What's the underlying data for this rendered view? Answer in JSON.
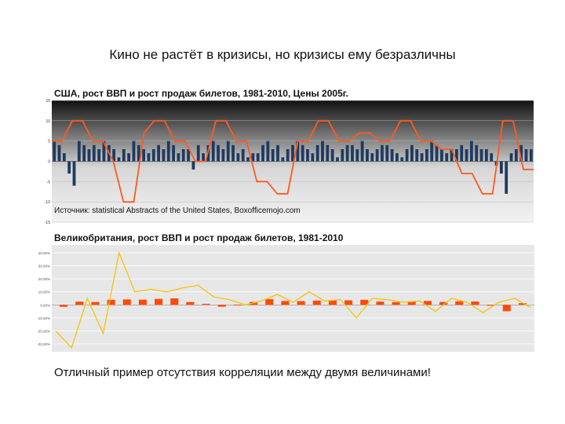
{
  "slide": {
    "title": "Кино не растёт в кризисы, но кризисы ему безразличны",
    "conclusion": "Отличный пример отсутствия корреляции между двумя величинами!"
  },
  "colors": {
    "us_gdp_bars": "#1f3a5f",
    "us_tickets_line": "#ff5a1f",
    "uk_gdp_bars": "#ff4a0a",
    "uk_tickets_line": "#f5c400"
  },
  "chart_data": [
    {
      "type": "bar",
      "title": "США, рост ВВП и рост продаж билетов, 1981-2010, Цены 2005г.",
      "source": "Источник: statistical Abstracts of the United States, Boxofficemojo.com",
      "y_ticks": [
        "15",
        "10",
        "5",
        "0",
        "-5",
        "-10",
        "-15"
      ],
      "ylim": [
        -15,
        15
      ],
      "grid": true,
      "series": [
        {
          "kind": "bars",
          "values": [
            5,
            4,
            2,
            -3,
            -6,
            5,
            4,
            3,
            4,
            3,
            5,
            4,
            3,
            1,
            3,
            2,
            5,
            4,
            3,
            2,
            3,
            4,
            3,
            5,
            4,
            2,
            3,
            3,
            -2,
            4,
            2,
            4,
            5,
            4,
            3,
            5,
            4,
            2,
            3,
            1,
            2,
            2,
            4,
            5,
            3,
            4,
            1,
            3,
            4,
            5,
            4,
            3,
            2,
            4,
            5,
            4,
            3,
            1,
            3,
            4,
            4,
            3,
            5,
            3,
            2,
            3,
            4,
            4,
            3,
            2,
            1,
            3,
            4,
            3,
            2,
            3,
            5,
            4,
            3,
            2,
            3,
            3,
            4,
            3,
            5,
            4,
            3,
            3,
            2,
            -1,
            -3,
            -8,
            2,
            3,
            4,
            3,
            3
          ]
        },
        {
          "kind": "line",
          "values": [
            5,
            5,
            10,
            10,
            5,
            5,
            0,
            -10,
            -10,
            7,
            10,
            10,
            5,
            5,
            0,
            0,
            10,
            10,
            5,
            5,
            -5,
            -5,
            -8,
            -8,
            5,
            5,
            10,
            10,
            5,
            5,
            7,
            7,
            5,
            5,
            10,
            10,
            5,
            5,
            3,
            3,
            -3,
            -3,
            -8,
            -8,
            10,
            10,
            -2,
            -2
          ]
        }
      ]
    },
    {
      "type": "bar",
      "title": "Великобритания, рост ВВП и рост продаж билетов, 1981-2010",
      "y_ticks": [
        "40,00%",
        "30,00%",
        "20,00%",
        "10,00%",
        "0,00%",
        "-10,00%",
        "-20,00%",
        "-30,00%"
      ],
      "ylim": [
        -30,
        40
      ],
      "grid": true,
      "series": [
        {
          "kind": "bars",
          "values": [
            -1.5,
            2.5,
            2.2,
            3.9,
            4.2,
            4.0,
            4.6,
            5.0,
            2.2,
            0.8,
            -1.4,
            0.2,
            2.3,
            4.4,
            3.0,
            2.9,
            3.3,
            3.6,
            3.5,
            3.9,
            2.5,
            2.1,
            2.8,
            3.0,
            2.2,
            2.8,
            2.6,
            -0.5,
            -4.9,
            1.3
          ]
        },
        {
          "kind": "line",
          "values": [
            -20,
            -33,
            5,
            -22,
            40,
            10,
            12,
            10,
            13,
            15,
            6,
            4,
            0,
            3,
            8,
            2,
            10,
            3,
            4,
            -10,
            5,
            4,
            2,
            3,
            -5,
            5,
            2,
            -6,
            2,
            5,
            -2
          ]
        }
      ]
    }
  ]
}
